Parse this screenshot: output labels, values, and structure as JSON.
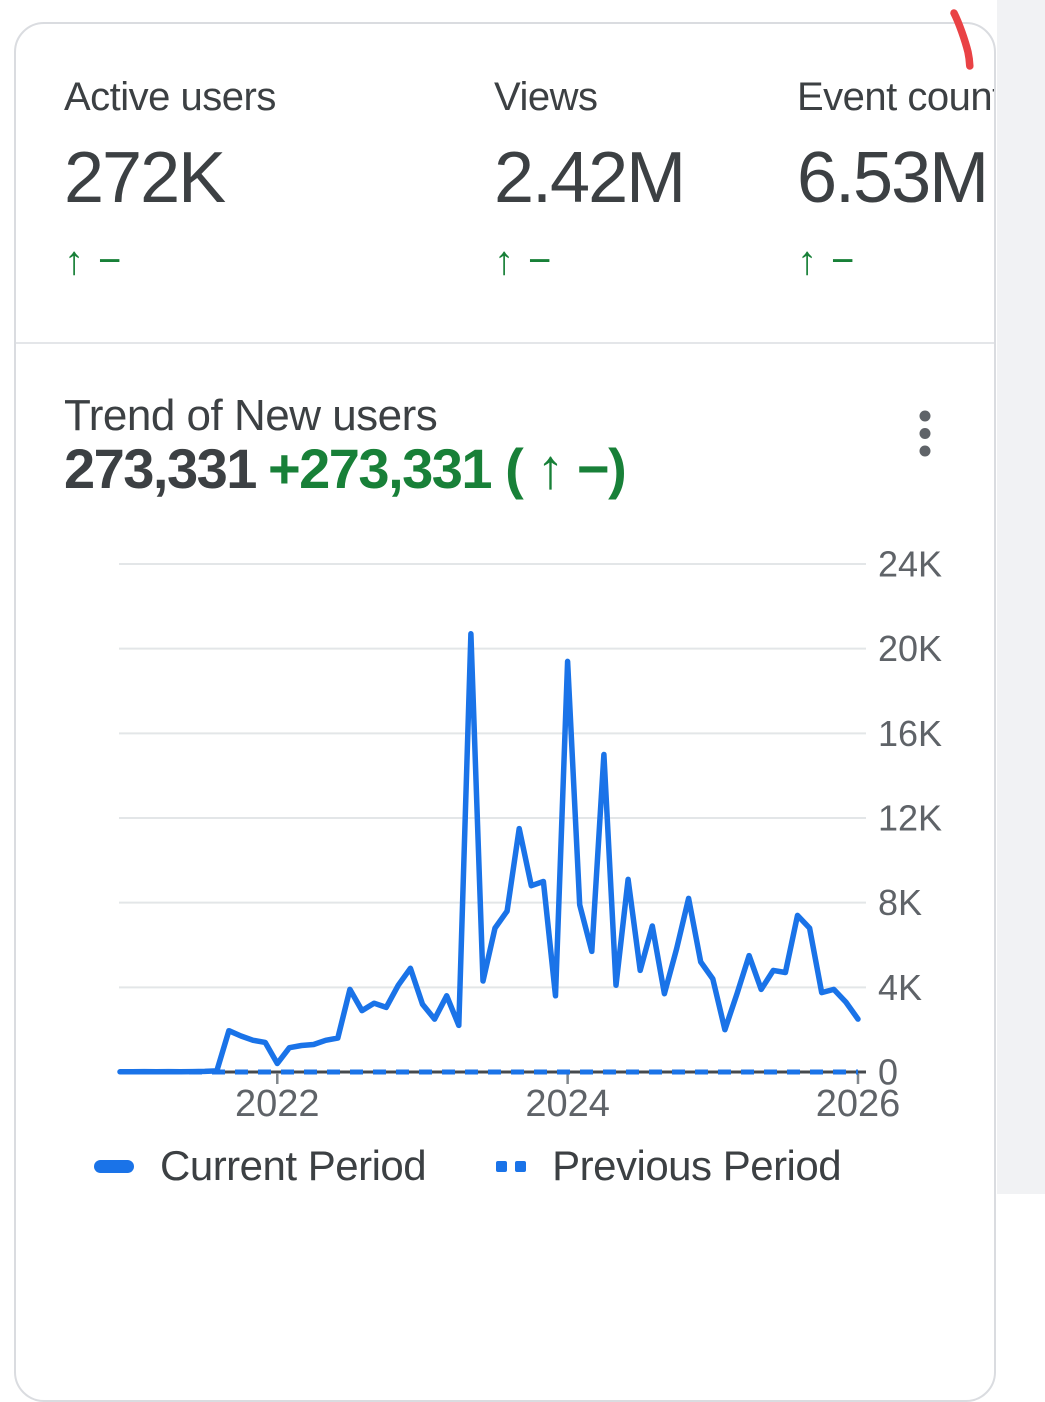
{
  "colors": {
    "blue": "#1a73e8",
    "green": "#188038",
    "red_marker": "#e94245",
    "grid": "#e3e6e8",
    "axis": "#45494d",
    "tick": "#80868b",
    "axis_text": "#5f6368"
  },
  "metrics": {
    "items": [
      {
        "label": "Active users",
        "value": "272K",
        "trend_arrow": "↑",
        "trend_dash": "−"
      },
      {
        "label": "Views",
        "value": "2.42M",
        "trend_arrow": "↑",
        "trend_dash": "−"
      },
      {
        "label": "Event count",
        "value": "6.53M",
        "trend_arrow": "↑",
        "trend_dash": "−"
      }
    ]
  },
  "trend": {
    "title": "Trend of New users",
    "total": "273,331",
    "delta": "+273,331 ( ↑ −)"
  },
  "legend": {
    "current": "Current Period",
    "previous": "Previous Period"
  },
  "chart_data": {
    "type": "line",
    "title": "Trend of New users",
    "xlabel": "",
    "ylabel": "",
    "ylim": [
      0,
      24000
    ],
    "grid": true,
    "legend_position": "bottom",
    "y_ticks": [
      {
        "label": "24K",
        "value": 24000
      },
      {
        "label": "20K",
        "value": 20000
      },
      {
        "label": "16K",
        "value": 16000
      },
      {
        "label": "12K",
        "value": 12000
      },
      {
        "label": "8K",
        "value": 8000
      },
      {
        "label": "4K",
        "value": 4000
      },
      {
        "label": "0",
        "value": 0
      }
    ],
    "x_ticks": [
      {
        "label": "2022",
        "index": 13
      },
      {
        "label": "2024",
        "index": 37
      },
      {
        "label": "2026",
        "index": 61
      }
    ],
    "months": [
      "2020-12",
      "2021-01",
      "2021-02",
      "2021-03",
      "2021-04",
      "2021-05",
      "2021-06",
      "2021-07",
      "2021-08",
      "2021-09",
      "2021-10",
      "2021-11",
      "2021-12",
      "2022-01",
      "2022-02",
      "2022-03",
      "2022-04",
      "2022-05",
      "2022-06",
      "2022-07",
      "2022-08",
      "2022-09",
      "2022-10",
      "2022-11",
      "2022-12",
      "2023-01",
      "2023-02",
      "2023-03",
      "2023-04",
      "2023-05",
      "2023-06",
      "2023-07",
      "2023-08",
      "2023-09",
      "2023-10",
      "2023-11",
      "2023-12",
      "2024-01",
      "2024-02",
      "2024-03",
      "2024-04",
      "2024-05",
      "2024-06",
      "2024-07",
      "2024-08",
      "2024-09",
      "2024-10",
      "2024-11",
      "2024-12",
      "2025-01",
      "2025-02",
      "2025-03",
      "2025-04",
      "2025-05",
      "2025-06",
      "2025-07",
      "2025-08",
      "2025-09",
      "2025-10",
      "2025-11",
      "2025-12",
      "2026-01"
    ],
    "series": [
      {
        "name": "Current Period",
        "style": "solid",
        "values": [
          10,
          10,
          20,
          10,
          20,
          10,
          20,
          30,
          50,
          1950,
          1700,
          1500,
          1400,
          400,
          1150,
          1250,
          1300,
          1500,
          1600,
          3900,
          2900,
          3250,
          3050,
          4100,
          4900,
          3200,
          2500,
          3600,
          2200,
          20700,
          4300,
          6800,
          7600,
          11500,
          8800,
          9000,
          3600,
          19400,
          7900,
          5700,
          15000,
          4100,
          9100,
          4800,
          6900,
          3700,
          5800,
          8200,
          5200,
          4400,
          2000,
          3700,
          5500,
          3900,
          4800,
          4700,
          7400,
          6800,
          3750,
          3900,
          3300,
          2500
        ]
      },
      {
        "name": "Previous Period",
        "style": "dashed",
        "constant_value": 0
      }
    ]
  }
}
